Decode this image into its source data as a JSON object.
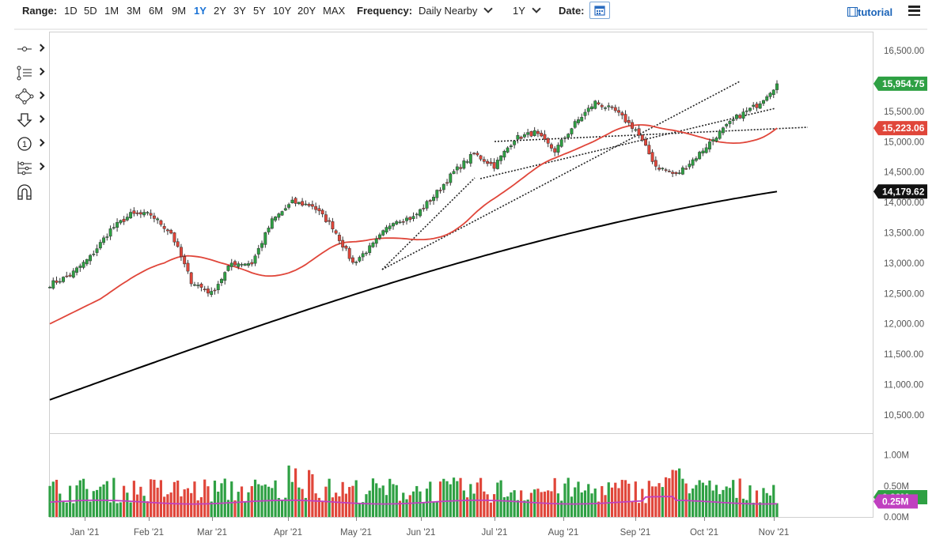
{
  "toolbar": {
    "range_label": "Range:",
    "ranges": [
      "1D",
      "5D",
      "1M",
      "3M",
      "6M",
      "9M",
      "1Y",
      "2Y",
      "3Y",
      "5Y",
      "10Y",
      "20Y",
      "MAX"
    ],
    "active_range": "1Y",
    "frequency_label": "Frequency:",
    "frequency_value": "Daily Nearby",
    "period_value": "1Y",
    "date_label": "Date:",
    "tutorial_label": "tutorial"
  },
  "tools": [
    "crosshair-tool",
    "trendline-tool",
    "shape-tool",
    "arrow-tool",
    "annotation-tool",
    "indicator-tool",
    "magnet-tool"
  ],
  "colors": {
    "up": "#2ea043",
    "down": "#e0463a",
    "ma50": "#e0463a",
    "ma200": "#000000",
    "volume_avg": "#c040c0",
    "active": "#1a73d6"
  },
  "chart_data": {
    "type": "candlestick",
    "price_axis": {
      "ticks": [
        "16,500.00",
        "16,000.00",
        "15,500.00",
        "15,000.00",
        "14,500.00",
        "14,000.00",
        "13,500.00",
        "13,000.00",
        "12,500.00",
        "12,000.00",
        "11,500.00",
        "11,000.00",
        "10,500.00"
      ],
      "range": [
        10200,
        16800
      ]
    },
    "volume_axis": {
      "ticks": [
        "1.00M",
        "0.50M",
        "0.00M"
      ],
      "range": [
        0,
        1100000
      ]
    },
    "x_labels": [
      "Jan '21",
      "Feb '21",
      "Mar '21",
      "Apr '21",
      "May '21",
      "Jun '21",
      "Jul '21",
      "Aug '21",
      "Sep '21",
      "Oct '21",
      "Nov '21"
    ],
    "close_points": [
      [
        "Jan 04",
        12650
      ],
      [
        "Jan 15",
        12800
      ],
      [
        "Jan 26",
        13100
      ],
      [
        "Feb 05",
        13550
      ],
      [
        "Feb 12",
        13800
      ],
      [
        "Feb 22",
        13800
      ],
      [
        "Feb 26",
        13500
      ],
      [
        "Mar 04",
        12700
      ],
      [
        "Mar 09",
        12500
      ],
      [
        "Mar 18",
        13000
      ],
      [
        "Mar 31",
        13000
      ],
      [
        "Apr 07",
        13700
      ],
      [
        "Apr 16",
        14000
      ],
      [
        "Apr 26",
        13950
      ],
      [
        "May 04",
        13600
      ],
      [
        "May 12",
        13000
      ],
      [
        "May 17",
        13300
      ],
      [
        "May 28",
        13700
      ],
      [
        "Jun 07",
        13750
      ],
      [
        "Jun 16",
        14100
      ],
      [
        "Jun 29",
        14500
      ],
      [
        "Jul 08",
        14800
      ],
      [
        "Jul 19",
        14600
      ],
      [
        "Jul 27",
        15050
      ],
      [
        "Aug 05",
        15150
      ],
      [
        "Aug 16",
        14850
      ],
      [
        "Aug 26",
        15300
      ],
      [
        "Sep 03",
        15650
      ],
      [
        "Sep 10",
        15500
      ],
      [
        "Sep 17",
        15200
      ],
      [
        "Sep 24",
        14600
      ],
      [
        "Oct 04",
        14450
      ],
      [
        "Oct 08",
        14750
      ],
      [
        "Oct 14",
        15100
      ],
      [
        "Oct 21",
        15400
      ],
      [
        "Oct 29",
        15600
      ],
      [
        "Nov 03",
        15954.75
      ]
    ],
    "last_price": "15,954.75",
    "ma50_last": "15,223.06",
    "ma200_last": "14,179.62",
    "volume_avg_last": "0.25M",
    "volume_last": "0.28M",
    "volume_range_note": "daily volume roughly 0.15M–1.05M",
    "grid": false,
    "legend": "none"
  }
}
